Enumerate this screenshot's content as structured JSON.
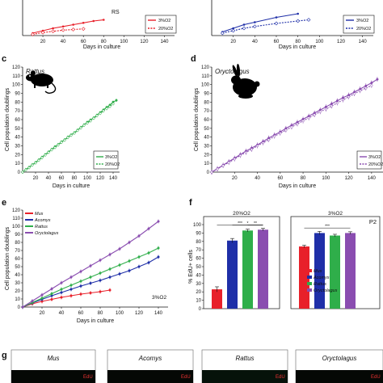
{
  "figure_panels": {
    "a": {
      "lineage": "RS",
      "legend": [
        "3%O2",
        "20%O2"
      ],
      "xlabel": "Days in culture",
      "xticks": [
        "20",
        "40",
        "60",
        "80",
        "100",
        "120",
        "140"
      ]
    },
    "b": {
      "legend": [
        "3%O2",
        "20%O2"
      ],
      "xlabel": "Days in culture",
      "xticks": [
        "20",
        "40",
        "60",
        "80",
        "100",
        "120",
        "140"
      ]
    },
    "c": {
      "letter": "c",
      "title": "Rattus"
    },
    "d": {
      "letter": "d",
      "title": "Oryctolagus"
    },
    "e": {
      "letter": "e",
      "footnote": "3%O2"
    },
    "f": {
      "letter": "f"
    },
    "g": {
      "letter": "g",
      "species": [
        "Mus",
        "Acomys",
        "Rattus",
        "Oryctolagus"
      ],
      "stain": "EdU"
    }
  },
  "colors": {
    "mus": "#e8202a",
    "acomys": "#1f2fa8",
    "rattus": "#2fae4a",
    "oryctolagus": "#8a4db0",
    "axis": "#111111"
  },
  "icons": {
    "c": "rat-silhouette-icon",
    "d": "rabbit-silhouette-icon"
  },
  "chart_data": [
    {
      "id": "a",
      "type": "line",
      "xlabel": "Days in culture",
      "xlim": [
        0,
        150
      ],
      "series": [
        {
          "name": "3%O2",
          "color": "#e8202a",
          "style": "solid",
          "x": [
            10,
            20,
            30,
            40,
            50,
            60,
            70,
            80
          ],
          "y": [
            2,
            4,
            6,
            7.5,
            9,
            10.5,
            12,
            13
          ]
        },
        {
          "name": "20%O2",
          "color": "#e8202a",
          "style": "dotted",
          "x": [
            10,
            20,
            30,
            40,
            50,
            60
          ],
          "y": [
            1,
            2.5,
            3.5,
            4.5,
            5,
            5.5
          ]
        }
      ]
    },
    {
      "id": "b",
      "type": "line",
      "xlabel": "Days in culture",
      "xlim": [
        0,
        150
      ],
      "series": [
        {
          "name": "3%O2",
          "color": "#1f2fa8",
          "style": "solid",
          "x": [
            10,
            20,
            30,
            40,
            60,
            80
          ],
          "y": [
            3,
            6,
            9,
            11,
            15,
            18
          ]
        },
        {
          "name": "20%O2",
          "color": "#1f2fa8",
          "style": "dotted",
          "x": [
            10,
            20,
            30,
            40,
            60,
            80,
            90
          ],
          "y": [
            2,
            4,
            6,
            7.5,
            10,
            12,
            13
          ]
        }
      ]
    },
    {
      "id": "c",
      "type": "line",
      "title": "Rattus",
      "xlabel": "Days in culture",
      "ylabel": "Cell population doublings",
      "xlim": [
        0,
        150
      ],
      "ylim": [
        0,
        120
      ],
      "xticks": [
        20,
        40,
        60,
        80,
        100,
        120,
        140
      ],
      "yticks": [
        0,
        10,
        20,
        30,
        40,
        50,
        60,
        70,
        80,
        90,
        100,
        110,
        120
      ],
      "legend": [
        "3%O2",
        "20%O2"
      ],
      "series": [
        {
          "name": "3%O2",
          "color": "#2fae4a",
          "style": "solid",
          "x": [
            0,
            5,
            10,
            15,
            20,
            25,
            30,
            35,
            40,
            45,
            50,
            55,
            60,
            65,
            70,
            75,
            80,
            85,
            90,
            95,
            100,
            105,
            110,
            115,
            120,
            125,
            130,
            135,
            140,
            145
          ],
          "y": [
            0,
            3,
            5.5,
            8.5,
            11,
            14,
            17,
            20,
            23,
            26,
            29,
            31.5,
            34.5,
            37,
            40,
            42.5,
            45,
            48,
            51,
            54,
            57,
            59.5,
            62,
            65,
            68,
            71,
            74,
            76.5,
            80,
            82
          ]
        },
        {
          "name": "20%O2",
          "color": "#2fae4a",
          "style": "dotted",
          "x": [
            0,
            5,
            10,
            15,
            20,
            25,
            30,
            35,
            40,
            45,
            50,
            55,
            60,
            65,
            70,
            75,
            80,
            85,
            90,
            95,
            100,
            105,
            110,
            115,
            120,
            125,
            130,
            135,
            140
          ],
          "y": [
            0,
            2.5,
            5,
            8,
            10.5,
            13.5,
            16.5,
            19.5,
            22.5,
            25.5,
            28,
            31,
            34,
            36.5,
            39.5,
            42,
            44.5,
            47.5,
            50.5,
            53.5,
            56,
            58.5,
            61.5,
            64.5,
            67,
            70,
            72.5,
            75,
            78
          ]
        }
      ]
    },
    {
      "id": "d",
      "type": "line",
      "title": "Oryctolagus",
      "xlabel": "Days in culture",
      "ylabel": "Cell population doublings",
      "xlim": [
        0,
        150
      ],
      "ylim": [
        0,
        120
      ],
      "xticks": [
        20,
        40,
        60,
        80,
        100,
        120,
        140
      ],
      "yticks": [
        0,
        10,
        20,
        30,
        40,
        50,
        60,
        70,
        80,
        90,
        100,
        110,
        120
      ],
      "legend": [
        "3%O2",
        "20%O2"
      ],
      "series": [
        {
          "name": "3%O2",
          "color": "#8a4db0",
          "style": "solid",
          "x": [
            0,
            5,
            10,
            15,
            20,
            25,
            30,
            35,
            40,
            45,
            50,
            55,
            60,
            65,
            70,
            75,
            80,
            85,
            90,
            95,
            100,
            105,
            110,
            115,
            120,
            125,
            130,
            135,
            140,
            145
          ],
          "y": [
            0,
            4,
            8,
            12,
            16,
            20,
            24,
            27.5,
            31,
            35,
            39,
            42.5,
            46,
            50,
            53.5,
            57,
            60.5,
            64,
            67.5,
            71,
            74.5,
            78,
            81.5,
            85,
            88,
            91.5,
            95,
            98.5,
            102,
            106
          ]
        },
        {
          "name": "20%O2",
          "color": "#8a4db0",
          "style": "dotted",
          "x": [
            0,
            5,
            10,
            15,
            20,
            25,
            30,
            35,
            40,
            45,
            50,
            55,
            60,
            65,
            70,
            75,
            80,
            85,
            90,
            95,
            100,
            105,
            110,
            115,
            120,
            125,
            130,
            135,
            140
          ],
          "y": [
            0,
            3.5,
            7.5,
            11,
            15,
            19,
            22.5,
            26,
            30,
            33.5,
            37,
            41,
            44.5,
            48,
            51.5,
            55,
            58.5,
            62,
            65.5,
            69,
            72,
            75.5,
            79,
            82.5,
            86,
            89.5,
            93,
            96,
            99
          ]
        }
      ]
    },
    {
      "id": "e",
      "type": "line",
      "xlabel": "Days in culture",
      "ylabel": "Cell population doublings",
      "xlim": [
        0,
        150
      ],
      "ylim": [
        0,
        120
      ],
      "xticks": [
        20,
        40,
        60,
        80,
        100,
        120,
        140
      ],
      "yticks": [
        0,
        10,
        20,
        30,
        40,
        50,
        60,
        70,
        80,
        90,
        100,
        110,
        120
      ],
      "legend": [
        "Mus",
        "Acomys",
        "Rattus",
        "Oryctolagus"
      ],
      "annotation": "3%O2",
      "series": [
        {
          "name": "Mus",
          "color": "#e8202a",
          "x": [
            0,
            10,
            20,
            30,
            40,
            50,
            60,
            70,
            80,
            90
          ],
          "y": [
            0,
            4,
            7,
            9.5,
            12,
            14,
            16,
            17.5,
            19,
            21
          ]
        },
        {
          "name": "Acomys",
          "color": "#1f2fa8",
          "x": [
            0,
            10,
            20,
            30,
            40,
            50,
            60,
            70,
            80,
            90,
            100,
            110,
            120,
            130,
            140
          ],
          "y": [
            0,
            5,
            9.5,
            14,
            18,
            22,
            26,
            29.5,
            33,
            37,
            41,
            45,
            50,
            55,
            62
          ]
        },
        {
          "name": "Rattus",
          "color": "#2fae4a",
          "x": [
            0,
            10,
            20,
            30,
            40,
            50,
            60,
            70,
            80,
            90,
            100,
            110,
            120,
            130,
            140
          ],
          "y": [
            0,
            5.5,
            11,
            16.5,
            22,
            27,
            32,
            37,
            42,
            47,
            52,
            57,
            62,
            67,
            73
          ]
        },
        {
          "name": "Oryctolagus",
          "color": "#8a4db0",
          "x": [
            0,
            10,
            20,
            30,
            40,
            50,
            60,
            70,
            80,
            90,
            100,
            110,
            120,
            130,
            140
          ],
          "y": [
            0,
            7.5,
            15,
            22.5,
            30,
            37,
            44,
            51,
            58,
            65,
            72,
            80,
            88,
            97,
            106
          ]
        }
      ]
    },
    {
      "id": "f",
      "type": "bar",
      "ylabel": "% EdU+ cells",
      "ylim": [
        0,
        100
      ],
      "yticks": [
        0,
        10,
        20,
        30,
        40,
        50,
        60,
        70,
        80,
        90,
        100
      ],
      "legend": [
        "Mus",
        "Acomys",
        "Rattus",
        "Oryctolagus"
      ],
      "panels": [
        {
          "title": "20%O2",
          "categories": [
            "Mus",
            "Acomys",
            "Rattus",
            "Oryctolagus"
          ],
          "values": [
            23,
            81,
            93,
            94
          ],
          "errors": [
            3,
            2.5,
            1.5,
            1.5
          ],
          "significance": [
            "***",
            "*",
            "**"
          ]
        },
        {
          "title": "3%O2",
          "tag": "P2",
          "categories": [
            "Mus",
            "Acomys",
            "Rattus",
            "Oryctolagus"
          ],
          "values": [
            74,
            90,
            87,
            90
          ],
          "errors": [
            1.5,
            2,
            1.5,
            1.5
          ],
          "significance": [
            "***"
          ]
        }
      ]
    }
  ]
}
